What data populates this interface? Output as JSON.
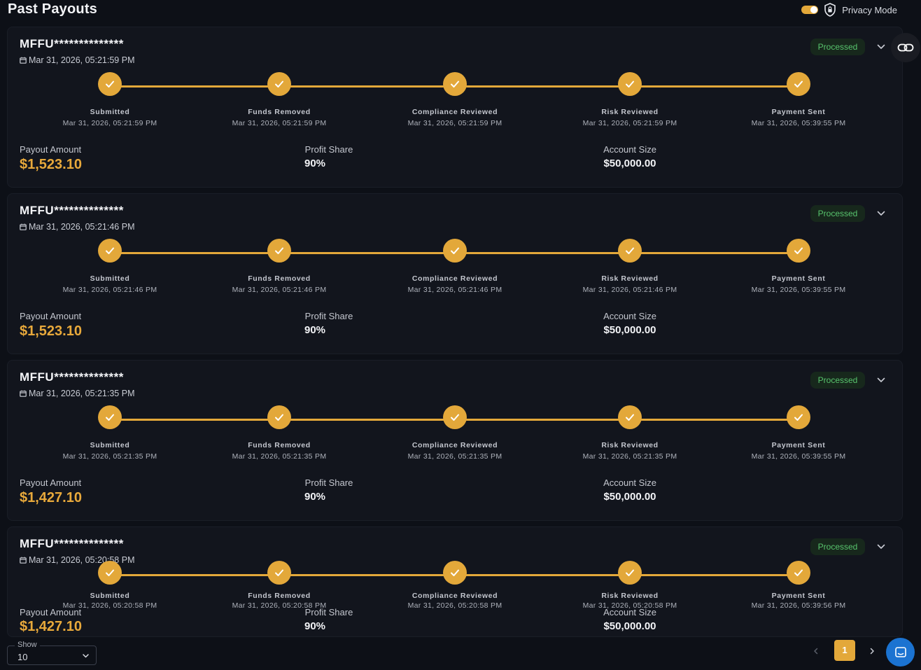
{
  "header": {
    "title": "Past Payouts",
    "privacy_label": "Privacy Mode",
    "privacy_enabled": true
  },
  "colors": {
    "accent": "#e3a83a",
    "amount": "#e8a93b",
    "processed_text": "#58c46d",
    "processed_bg": "#17281c",
    "chat": "#1b73d1"
  },
  "labels": {
    "payout_amount": "Payout Amount",
    "profit_share": "Profit Share",
    "account_size": "Account Size"
  },
  "payouts": [
    {
      "account": "MFFU**************",
      "date": "Mar 31, 2026, 05:21:59 PM",
      "status": "Processed",
      "steps": [
        {
          "label": "Submitted",
          "time": "Mar 31, 2026, 05:21:59 PM"
        },
        {
          "label": "Funds Removed",
          "time": "Mar 31, 2026, 05:21:59 PM"
        },
        {
          "label": "Compliance Reviewed",
          "time": "Mar 31, 2026, 05:21:59 PM"
        },
        {
          "label": "Risk Reviewed",
          "time": "Mar 31, 2026, 05:21:59 PM"
        },
        {
          "label": "Payment Sent",
          "time": "Mar 31, 2026, 05:39:55 PM"
        }
      ],
      "payout_amount": "$1,523.10",
      "profit_share": "90%",
      "account_size": "$50,000.00"
    },
    {
      "account": "MFFU**************",
      "date": "Mar 31, 2026, 05:21:46 PM",
      "status": "Processed",
      "steps": [
        {
          "label": "Submitted",
          "time": "Mar 31, 2026, 05:21:46 PM"
        },
        {
          "label": "Funds Removed",
          "time": "Mar 31, 2026, 05:21:46 PM"
        },
        {
          "label": "Compliance Reviewed",
          "time": "Mar 31, 2026, 05:21:46 PM"
        },
        {
          "label": "Risk Reviewed",
          "time": "Mar 31, 2026, 05:21:46 PM"
        },
        {
          "label": "Payment Sent",
          "time": "Mar 31, 2026, 05:39:55 PM"
        }
      ],
      "payout_amount": "$1,523.10",
      "profit_share": "90%",
      "account_size": "$50,000.00"
    },
    {
      "account": "MFFU**************",
      "date": "Mar 31, 2026, 05:21:35 PM",
      "status": "Processed",
      "steps": [
        {
          "label": "Submitted",
          "time": "Mar 31, 2026, 05:21:35 PM"
        },
        {
          "label": "Funds Removed",
          "time": "Mar 31, 2026, 05:21:35 PM"
        },
        {
          "label": "Compliance Reviewed",
          "time": "Mar 31, 2026, 05:21:35 PM"
        },
        {
          "label": "Risk Reviewed",
          "time": "Mar 31, 2026, 05:21:35 PM"
        },
        {
          "label": "Payment Sent",
          "time": "Mar 31, 2026, 05:39:55 PM"
        }
      ],
      "payout_amount": "$1,427.10",
      "profit_share": "90%",
      "account_size": "$50,000.00"
    },
    {
      "account": "MFFU**************",
      "date": "Mar 31, 2026, 05:20:58 PM",
      "status": "Processed",
      "steps": [
        {
          "label": "Submitted",
          "time": "Mar 31, 2026, 05:20:58 PM"
        },
        {
          "label": "Funds Removed",
          "time": "Mar 31, 2026, 05:20:58 PM"
        },
        {
          "label": "Compliance Reviewed",
          "time": "Mar 31, 2026, 05:20:58 PM"
        },
        {
          "label": "Risk Reviewed",
          "time": "Mar 31, 2026, 05:20:58 PM"
        },
        {
          "label": "Payment Sent",
          "time": "Mar 31, 2026, 05:39:56 PM"
        }
      ],
      "payout_amount": "$1,427.10",
      "profit_share": "90%",
      "account_size": "$50,000.00"
    }
  ],
  "pagination": {
    "show_label": "Show",
    "show_value": "10",
    "current_page": "1"
  }
}
